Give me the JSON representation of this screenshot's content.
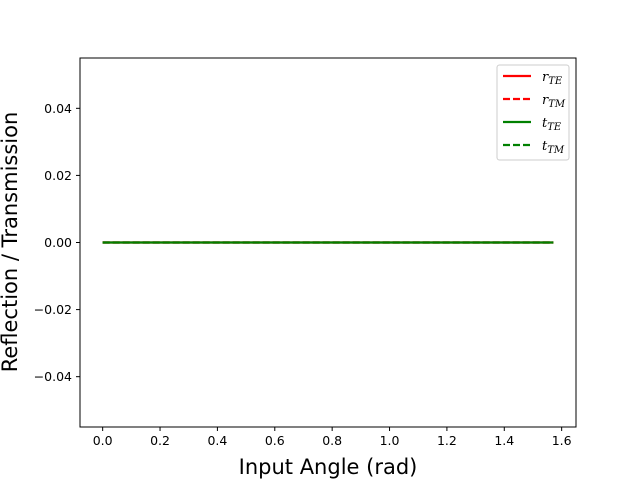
{
  "chart_data": {
    "type": "line",
    "title": "",
    "xlabel": "Input Angle (rad)",
    "ylabel": "Reflection / Transmission",
    "xlim": [
      -0.079,
      1.65
    ],
    "ylim": [
      -0.055,
      0.055
    ],
    "xticks": [
      0.0,
      0.2,
      0.4,
      0.6,
      0.8,
      1.0,
      1.2,
      1.4,
      1.6
    ],
    "xtick_labels": [
      "0.0",
      "0.2",
      "0.4",
      "0.6",
      "0.8",
      "1.0",
      "1.2",
      "1.4",
      "1.6"
    ],
    "yticks": [
      -0.04,
      -0.02,
      0.0,
      0.02,
      0.04
    ],
    "ytick_labels": [
      "−0.04",
      "−0.02",
      "0.00",
      "0.02",
      "0.04"
    ],
    "grid": false,
    "legend_position": "top-right",
    "series": [
      {
        "name": "r",
        "sub": "TE",
        "color": "#ff0000",
        "dash": "solid",
        "x": [
          0.0,
          1.5708
        ],
        "y": [
          0.0,
          0.0
        ]
      },
      {
        "name": "r",
        "sub": "TM",
        "color": "#ff0000",
        "dash": "dashed",
        "x": [
          0.0,
          1.5708
        ],
        "y": [
          0.0,
          0.0
        ]
      },
      {
        "name": "t",
        "sub": "TE",
        "color": "#008000",
        "dash": "solid",
        "x": [
          0.0,
          1.5708
        ],
        "y": [
          0.0,
          0.0
        ]
      },
      {
        "name": "t",
        "sub": "TM",
        "color": "#008000",
        "dash": "dashed",
        "x": [
          0.0,
          1.5708
        ],
        "y": [
          0.0,
          0.0
        ]
      }
    ]
  }
}
